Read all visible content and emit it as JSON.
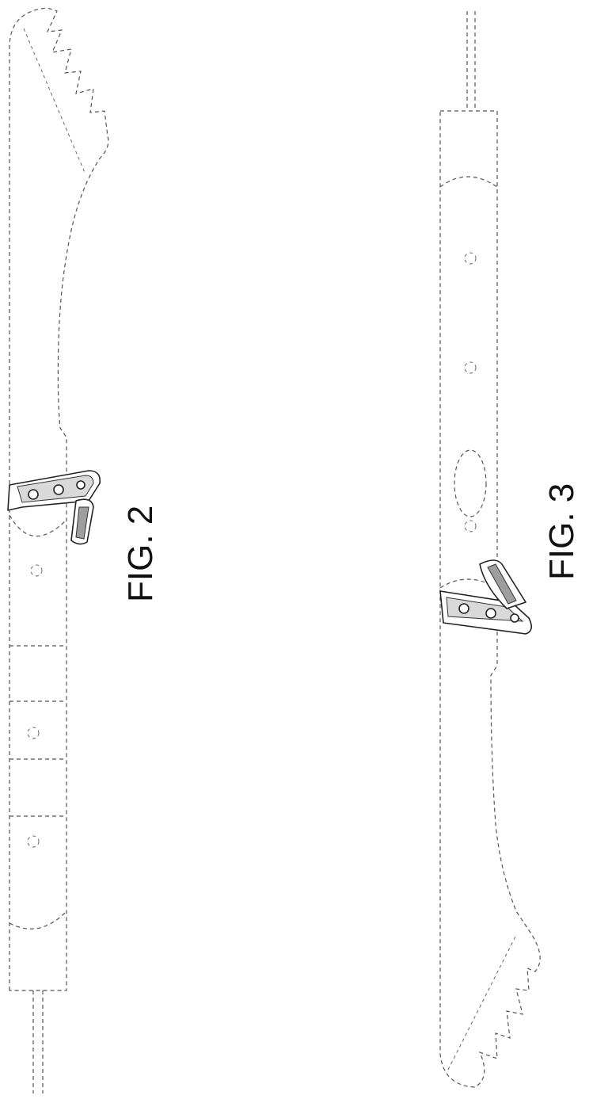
{
  "figures": [
    {
      "label": "FIG. 2"
    },
    {
      "label": "FIG. 3"
    }
  ],
  "colors": {
    "line": "#555555",
    "part_outline": "#222222",
    "part_shade": "#d9d9d9",
    "background": "#ffffff"
  }
}
